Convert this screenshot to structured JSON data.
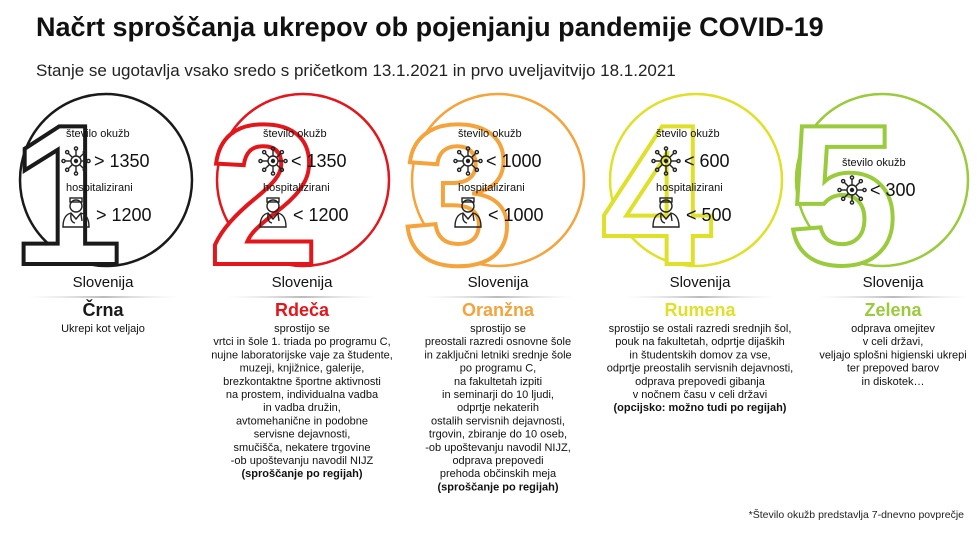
{
  "header": {
    "title": "Načrt sproščanja ukrepov ob pojenjanju pandemije COVID-19",
    "subtitle": "Stanje se ugotavlja vsako sredo s pričetkom 13.1.2021 in prvo uveljavitvijo 18.1.2021"
  },
  "columns": [
    {
      "digit": "1",
      "color": "#1a1a1a",
      "infections_label": "število okužb",
      "infections": "> 1350",
      "hospital_label": "hospitalizirani",
      "hospital": "> 1200",
      "region": "Slovenija",
      "level": "Črna",
      "lines": [
        "Ukrepi kot veljajo"
      ]
    },
    {
      "digit": "2",
      "color": "#e3161b",
      "infections_label": "število okužb",
      "infections": "< 1350",
      "hospital_label": "hospitalizirani",
      "hospital": "< 1200",
      "region": "Slovenija",
      "level": "Rdeča",
      "lines": [
        "sprostijo se",
        "vrtci in šole 1. triada po programu C,",
        "nujne laboratorijske vaje za študente,",
        "muzeji, knjižnice, galerije,",
        "brezkontaktne športne aktivnosti",
        "na prostem, individualna vadba",
        "in vadba družin,",
        "avtomehanične in podobne",
        "servisne dejavnosti,",
        "smučišča, nekatere trgovine",
        "-ob upoštevanju navodil NIJZ"
      ],
      "note": "(sproščanje po regijah)"
    },
    {
      "digit": "3",
      "color": "#f5a33c",
      "infections_label": "število okužb",
      "infections": "< 1000",
      "hospital_label": "hospitalizirani",
      "hospital": "< 1000",
      "region": "Slovenija",
      "level": "Oranžna",
      "lines": [
        "sprostijo se",
        "preostali razredi osnovne šole",
        "in zaključni letniki srednje šole",
        "po programu C,",
        "na fakultetah izpiti",
        "in seminarji do 10 ljudi,",
        "odprtje nekaterih",
        "ostalih servisnih dejavnosti,",
        "trgovin, zbiranje do 10 oseb,",
        "-ob upoštevanju navodil NIJZ,",
        "odprava prepovedi",
        "prehoda občinskih meja"
      ],
      "note": "(sproščanje po regijah)"
    },
    {
      "digit": "4",
      "color": "#dfe02a",
      "infections_label": "število okužb",
      "infections": "< 600",
      "hospital_label": "hospitalizirani",
      "hospital": "< 500",
      "region": "Slovenija",
      "level": "Rumena",
      "lines": [
        "sprostijo se ostali razredi srednjih šol,",
        "pouk na fakultetah, odprtje dijaških",
        "in študentskih domov za vse,",
        "odprtje preostalih servisnih dejavnosti,",
        "odprava prepovedi gibanja",
        "v nočnem času v celi državi"
      ],
      "note": "(opcijsko: možno tudi po regijah)"
    },
    {
      "digit": "5",
      "color": "#9acb3c",
      "infections_label": "število okužb",
      "infections": "< 300",
      "region": "Slovenija",
      "level": "Zelena",
      "lines": [
        "odprava omejitev",
        "v celi državi,",
        "veljajo splošni higienski ukrepi",
        "ter prepoved barov",
        "in diskotek…"
      ]
    }
  ],
  "footnote": "*Število okužb predstavlja 7-dnevno povprečje"
}
